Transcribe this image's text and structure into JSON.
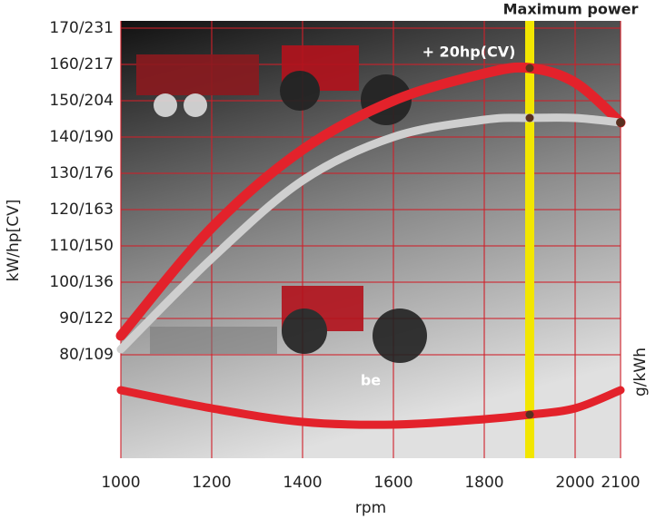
{
  "chart_data": {
    "type": "line",
    "x_label": "rpm",
    "y_label": "kW/hp[CV]",
    "y2_label": "g/kWh",
    "x": [
      1000,
      1200,
      1400,
      1600,
      1800,
      1900,
      2000,
      2100
    ],
    "series": [
      {
        "color": "#e3222b",
        "values": [
          85.25,
          115,
          136.5,
          150,
          157.5,
          159,
          155,
          144
        ]
      },
      {
        "color": "#cfcfcf",
        "values": [
          81.5,
          106.5,
          128,
          140,
          144.75,
          145.25,
          145.25,
          144
        ]
      },
      {
        "color": "#e3222b",
        "values": [
          70.25,
          65.25,
          61.5,
          60.75,
          62.25,
          63.5,
          65.25,
          70.25
        ]
      }
    ],
    "xlim": [
      1000,
      2100
    ],
    "xticks": [
      1000,
      1200,
      1400,
      1600,
      1800,
      2000,
      2100
    ],
    "ylim": [
      51.5,
      172
    ],
    "yticks": [
      {
        "value": 80,
        "label": "80/109"
      },
      {
        "value": 90,
        "label": "90/122"
      },
      {
        "value": 100,
        "label": "100/136"
      },
      {
        "value": 110,
        "label": "110/150"
      },
      {
        "value": 120,
        "label": "120/163"
      },
      {
        "value": 130,
        "label": "130/176"
      },
      {
        "value": 140,
        "label": "140/190"
      },
      {
        "value": 150,
        "label": "150/204"
      },
      {
        "value": 160,
        "label": "160/217"
      },
      {
        "value": 170,
        "label": "170/231"
      }
    ],
    "grid": true,
    "vline": {
      "x": 1900,
      "label": "Maximum power",
      "color": "#f2e600"
    },
    "annotations": [
      "+ 20hp(CV)",
      "be"
    ]
  }
}
